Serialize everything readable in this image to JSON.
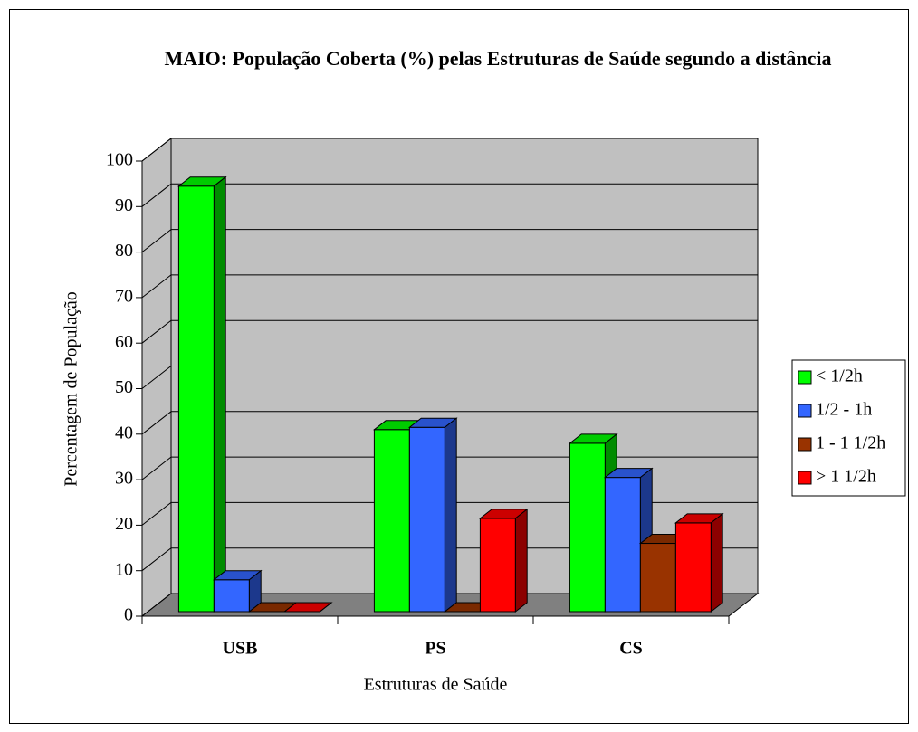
{
  "chart_data": {
    "type": "bar3d",
    "title": "MAIO: População Coberta (%) pelas Estruturas de Saúde segundo a distância",
    "xlabel": "Estruturas de  Saúde",
    "ylabel": "Percentagem de População",
    "categories": [
      "USB",
      "PS",
      "CS"
    ],
    "series": [
      {
        "name": "< 1/2h",
        "color": "#00ff00",
        "values": [
          93.5,
          40,
          37
        ]
      },
      {
        "name": "1/2 - 1h",
        "color": "#3366ff",
        "values": [
          7,
          40.5,
          29.5
        ]
      },
      {
        "name": "1 - 1 1/2h",
        "color": "#993300",
        "values": [
          0,
          0,
          15
        ]
      },
      {
        "name": "> 1 1/2h",
        "color": "#ff0000",
        "values": [
          0,
          20.5,
          19.5
        ]
      }
    ],
    "ylim": [
      0,
      100
    ],
    "yticks": [
      0,
      10,
      20,
      30,
      40,
      50,
      60,
      70,
      80,
      90,
      100
    ],
    "grid": true,
    "legend": "right"
  }
}
